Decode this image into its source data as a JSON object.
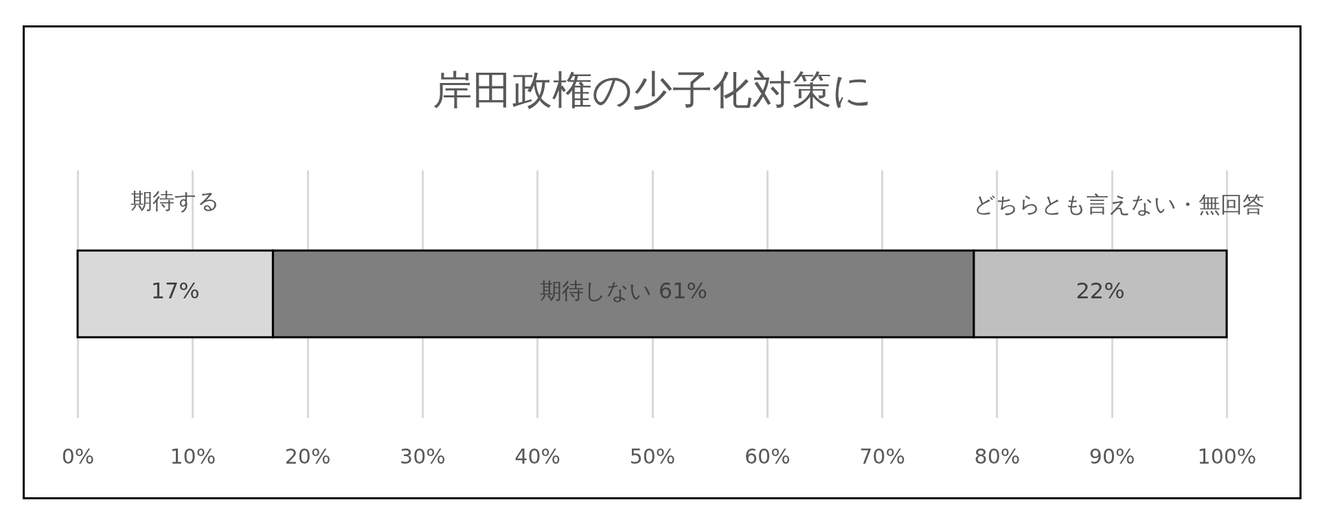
{
  "chart_data": {
    "type": "bar",
    "title": "岸田政権の少子化対策に",
    "orientation": "horizontal",
    "stacked": true,
    "categories": [
      null
    ],
    "series": [
      {
        "name": "期待する",
        "color": "#d9d9d9",
        "values": [
          17
        ],
        "value_labels": [
          "17%"
        ]
      },
      {
        "name": "期待しない",
        "color": "#7f7f7f",
        "values": [
          61
        ],
        "value_labels": [
          "61%"
        ]
      },
      {
        "name": "どちらとも言えない・無回答",
        "color": "#bfbfbf",
        "values": [
          22
        ],
        "value_labels": [
          "22%"
        ]
      }
    ],
    "xlim": [
      0,
      100
    ],
    "xticks": [
      {
        "value": 0,
        "label": "0%"
      },
      {
        "value": 10,
        "label": "10%"
      },
      {
        "value": 20,
        "label": "20%"
      },
      {
        "value": 30,
        "label": "30%"
      },
      {
        "value": 40,
        "label": "40%"
      },
      {
        "value": 50,
        "label": "50%"
      },
      {
        "value": 60,
        "label": "60%"
      },
      {
        "value": 70,
        "label": "70%"
      },
      {
        "value": 80,
        "label": "80%"
      },
      {
        "value": 90,
        "label": "90%"
      },
      {
        "value": 100,
        "label": "100%"
      }
    ],
    "grid": "x",
    "legend": false
  }
}
